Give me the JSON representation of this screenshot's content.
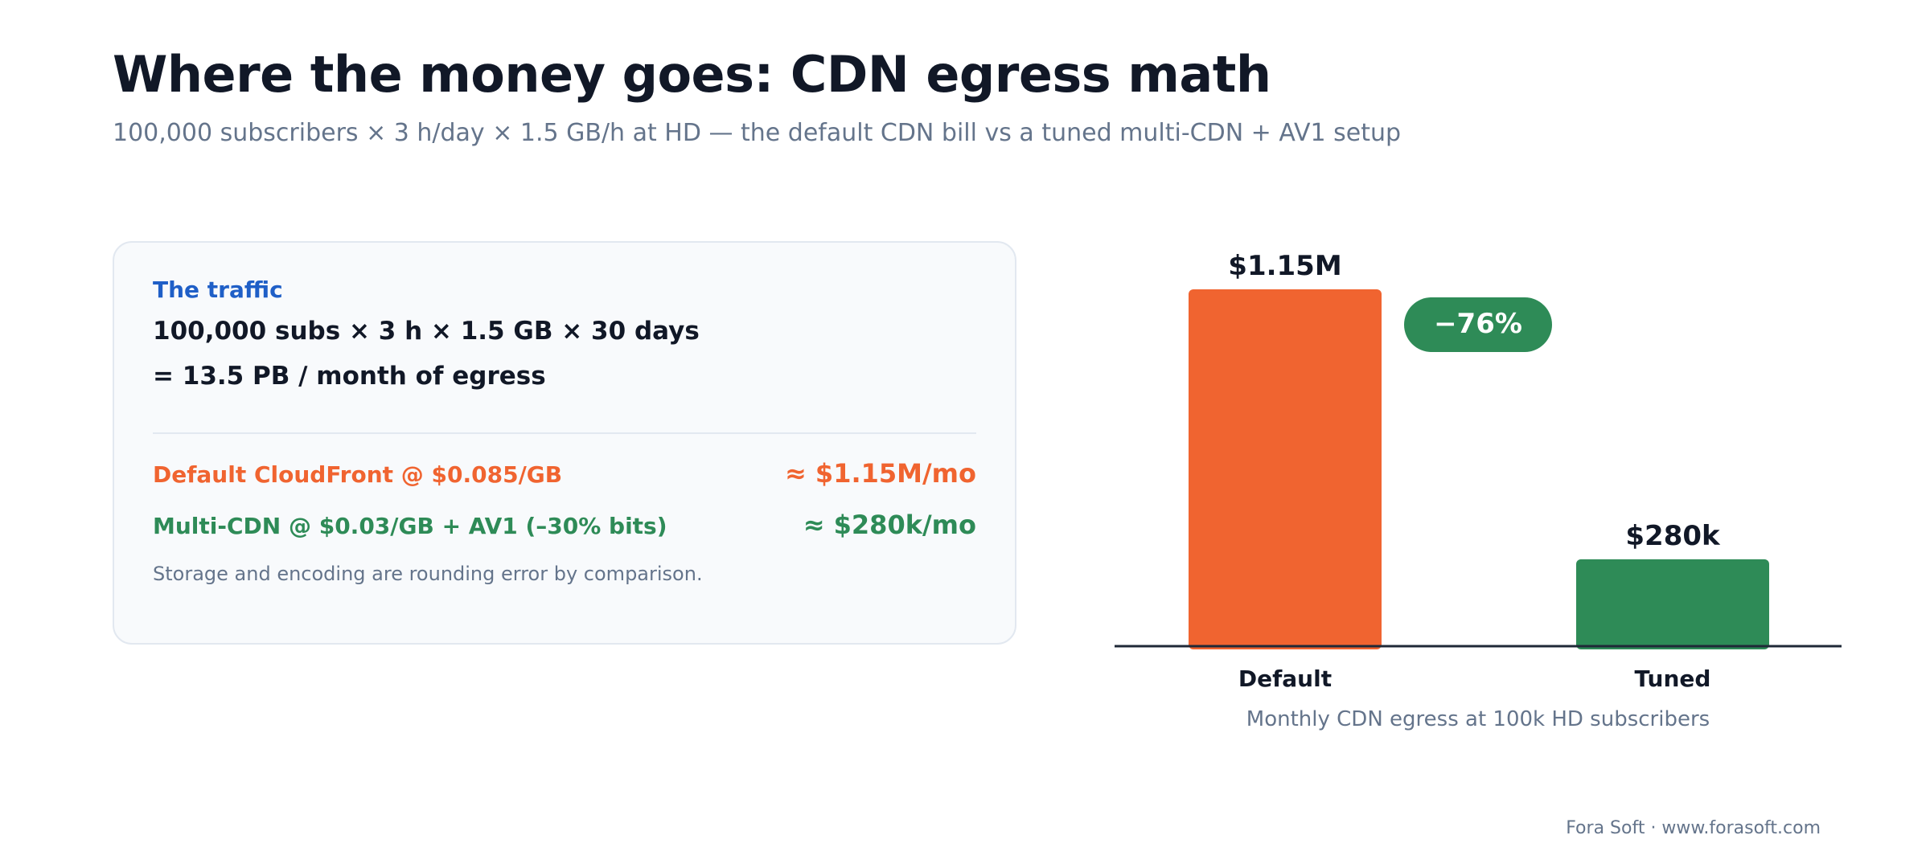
{
  "header": {
    "title": "Where the money goes: CDN egress math",
    "subtitle": "100,000 subscribers × 3 h/day × 1.5 GB/h at HD — the default CDN bill vs a tuned multi-CDN + AV1 setup"
  },
  "card": {
    "eyebrow": "The traffic",
    "formula_line1": "100,000 subs × 3 h × 1.5 GB × 30 days",
    "formula_line2": "= 13.5 PB / month of egress",
    "rows": [
      {
        "label": "Default CloudFront @ $0.085/GB",
        "value": "≈ $1.15M/mo",
        "color": "#f06430"
      },
      {
        "label": "Multi-CDN @ $0.03/GB + AV1 (–30% bits)",
        "value": "≈ $280k/mo",
        "color": "#2e8b57"
      }
    ],
    "note": "Storage and encoding are rounding error by comparison."
  },
  "chart_data": {
    "type": "bar",
    "categories": [
      "Default",
      "Tuned"
    ],
    "values": [
      1150000,
      280000
    ],
    "value_labels": [
      "$1.15M",
      "$280k"
    ],
    "colors": [
      "#f06430",
      "#2e8b57"
    ],
    "badge": "−76%",
    "badge_color": "#2e8b57",
    "caption": "Monthly CDN egress at 100k HD subscribers",
    "ylim": [
      0,
      1150000
    ],
    "grid": false
  },
  "footer": "Fora Soft · www.forasoft.com"
}
